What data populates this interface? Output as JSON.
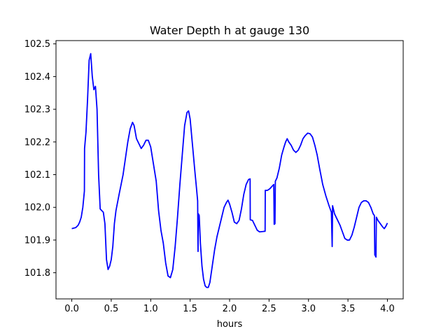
{
  "chart_data": {
    "type": "line",
    "title": "Water Depth h at gauge 130",
    "xlabel": "hours",
    "ylabel": "",
    "xlim": [
      -0.2,
      4.2
    ],
    "ylim": [
      101.72,
      102.51
    ],
    "x_ticks": [
      0.0,
      0.5,
      1.0,
      1.5,
      2.0,
      2.5,
      3.0,
      3.5,
      4.0
    ],
    "x_tick_labels": [
      "0.0",
      "0.5",
      "1.0",
      "1.5",
      "2.0",
      "2.5",
      "3.0",
      "3.5",
      "4.0"
    ],
    "y_ticks": [
      101.8,
      101.9,
      102.0,
      102.1,
      102.2,
      102.3,
      102.4,
      102.5
    ],
    "y_tick_labels": [
      "101.8",
      "101.9",
      "102.0",
      "102.1",
      "102.2",
      "102.3",
      "102.4",
      "102.5"
    ],
    "grid": false,
    "series": [
      {
        "color": "#0000ff",
        "points": [
          [
            0.0,
            101.935
          ],
          [
            0.05,
            101.938
          ],
          [
            0.08,
            101.945
          ],
          [
            0.1,
            101.955
          ],
          [
            0.12,
            101.97
          ],
          [
            0.14,
            102.0
          ],
          [
            0.16,
            102.05
          ],
          [
            0.162,
            102.18
          ],
          [
            0.18,
            102.23
          ],
          [
            0.2,
            102.33
          ],
          [
            0.22,
            102.45
          ],
          [
            0.24,
            102.47
          ],
          [
            0.26,
            102.4
          ],
          [
            0.28,
            102.36
          ],
          [
            0.3,
            102.37
          ],
          [
            0.32,
            102.3
          ],
          [
            0.34,
            102.1
          ],
          [
            0.36,
            101.995
          ],
          [
            0.38,
            101.99
          ],
          [
            0.4,
            101.985
          ],
          [
            0.42,
            101.95
          ],
          [
            0.44,
            101.84
          ],
          [
            0.46,
            101.81
          ],
          [
            0.48,
            101.82
          ],
          [
            0.5,
            101.84
          ],
          [
            0.52,
            101.88
          ],
          [
            0.54,
            101.95
          ],
          [
            0.56,
            101.99
          ],
          [
            0.6,
            102.04
          ],
          [
            0.65,
            102.1
          ],
          [
            0.68,
            102.15
          ],
          [
            0.71,
            102.2
          ],
          [
            0.74,
            102.24
          ],
          [
            0.77,
            102.26
          ],
          [
            0.79,
            102.25
          ],
          [
            0.82,
            102.21
          ],
          [
            0.85,
            102.195
          ],
          [
            0.88,
            102.18
          ],
          [
            0.91,
            102.19
          ],
          [
            0.94,
            102.205
          ],
          [
            0.97,
            102.205
          ],
          [
            1.0,
            102.185
          ],
          [
            1.03,
            102.14
          ],
          [
            1.07,
            102.08
          ],
          [
            1.1,
            101.99
          ],
          [
            1.13,
            101.93
          ],
          [
            1.16,
            101.89
          ],
          [
            1.19,
            101.83
          ],
          [
            1.22,
            101.79
          ],
          [
            1.25,
            101.785
          ],
          [
            1.28,
            101.81
          ],
          [
            1.31,
            101.88
          ],
          [
            1.34,
            101.97
          ],
          [
            1.37,
            102.07
          ],
          [
            1.4,
            102.16
          ],
          [
            1.43,
            102.25
          ],
          [
            1.46,
            102.29
          ],
          [
            1.48,
            102.295
          ],
          [
            1.5,
            102.27
          ],
          [
            1.53,
            102.19
          ],
          [
            1.56,
            102.11
          ],
          [
            1.58,
            102.06
          ],
          [
            1.595,
            102.02
          ],
          [
            1.6,
            101.865
          ],
          [
            1.605,
            101.98
          ],
          [
            1.615,
            101.975
          ],
          [
            1.63,
            101.89
          ],
          [
            1.65,
            101.82
          ],
          [
            1.67,
            101.78
          ],
          [
            1.69,
            101.76
          ],
          [
            1.71,
            101.755
          ],
          [
            1.73,
            101.755
          ],
          [
            1.75,
            101.77
          ],
          [
            1.78,
            101.82
          ],
          [
            1.81,
            101.87
          ],
          [
            1.84,
            101.91
          ],
          [
            1.87,
            101.94
          ],
          [
            1.9,
            101.97
          ],
          [
            1.93,
            102.0
          ],
          [
            1.96,
            102.015
          ],
          [
            1.98,
            102.022
          ],
          [
            2.0,
            102.01
          ],
          [
            2.03,
            101.985
          ],
          [
            2.06,
            101.955
          ],
          [
            2.09,
            101.95
          ],
          [
            2.12,
            101.96
          ],
          [
            2.15,
            101.995
          ],
          [
            2.18,
            102.04
          ],
          [
            2.21,
            102.07
          ],
          [
            2.24,
            102.085
          ],
          [
            2.26,
            102.087
          ],
          [
            2.262,
            101.962
          ],
          [
            2.29,
            101.96
          ],
          [
            2.32,
            101.945
          ],
          [
            2.35,
            101.93
          ],
          [
            2.38,
            101.925
          ],
          [
            2.42,
            101.926
          ],
          [
            2.45,
            101.927
          ],
          [
            2.452,
            102.052
          ],
          [
            2.48,
            102.052
          ],
          [
            2.51,
            102.057
          ],
          [
            2.54,
            102.065
          ],
          [
            2.56,
            102.07
          ],
          [
            2.565,
            101.948
          ],
          [
            2.575,
            101.95
          ],
          [
            2.58,
            102.08
          ],
          [
            2.6,
            102.09
          ],
          [
            2.63,
            102.12
          ],
          [
            2.66,
            102.16
          ],
          [
            2.69,
            102.185
          ],
          [
            2.71,
            102.2
          ],
          [
            2.73,
            102.21
          ],
          [
            2.75,
            102.2
          ],
          [
            2.78,
            102.19
          ],
          [
            2.81,
            102.175
          ],
          [
            2.84,
            102.168
          ],
          [
            2.87,
            102.175
          ],
          [
            2.9,
            102.19
          ],
          [
            2.93,
            102.21
          ],
          [
            2.96,
            102.22
          ],
          [
            2.99,
            102.227
          ],
          [
            3.02,
            102.225
          ],
          [
            3.05,
            102.215
          ],
          [
            3.08,
            102.19
          ],
          [
            3.11,
            102.16
          ],
          [
            3.14,
            102.12
          ],
          [
            3.18,
            102.07
          ],
          [
            3.22,
            102.035
          ],
          [
            3.26,
            102.005
          ],
          [
            3.29,
            101.985
          ],
          [
            3.3,
            101.88
          ],
          [
            3.305,
            102.005
          ],
          [
            3.33,
            101.98
          ],
          [
            3.36,
            101.965
          ],
          [
            3.4,
            101.945
          ],
          [
            3.43,
            101.925
          ],
          [
            3.46,
            101.905
          ],
          [
            3.49,
            101.9
          ],
          [
            3.52,
            101.9
          ],
          [
            3.55,
            101.915
          ],
          [
            3.58,
            101.94
          ],
          [
            3.61,
            101.97
          ],
          [
            3.64,
            102.0
          ],
          [
            3.67,
            102.015
          ],
          [
            3.7,
            102.02
          ],
          [
            3.73,
            102.02
          ],
          [
            3.76,
            102.015
          ],
          [
            3.79,
            102.0
          ],
          [
            3.82,
            101.98
          ],
          [
            3.835,
            101.975
          ],
          [
            3.84,
            101.855
          ],
          [
            3.855,
            101.848
          ],
          [
            3.86,
            101.97
          ],
          [
            3.88,
            101.96
          ],
          [
            3.91,
            101.95
          ],
          [
            3.94,
            101.94
          ],
          [
            3.96,
            101.935
          ],
          [
            3.98,
            101.942
          ],
          [
            4.0,
            101.952
          ]
        ]
      }
    ]
  }
}
